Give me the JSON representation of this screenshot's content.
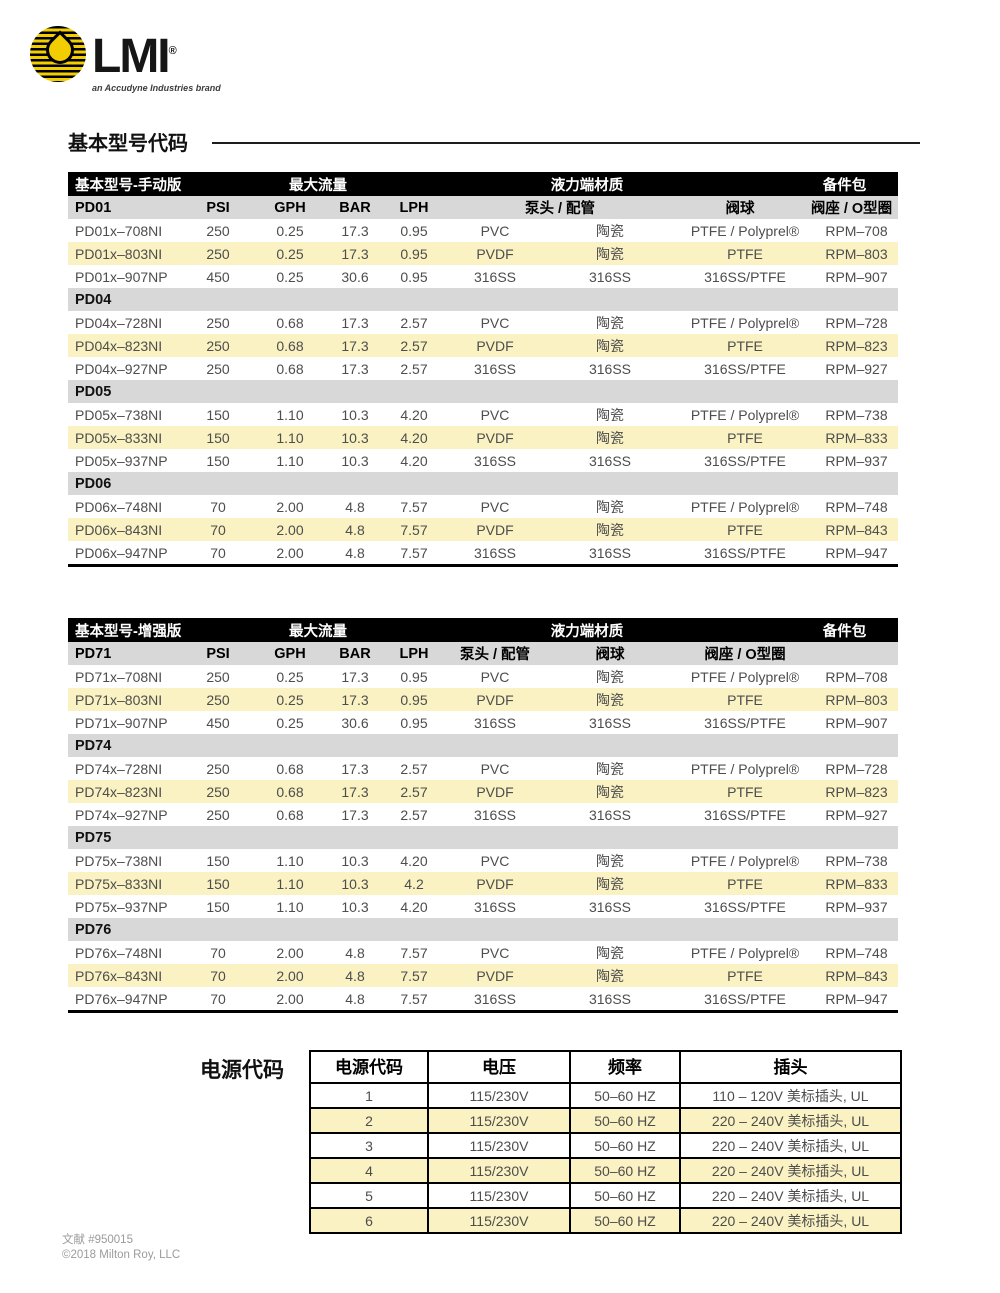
{
  "logo": {
    "brand": "LMI",
    "registered": "®",
    "tagline": "an Accudyne Industries brand"
  },
  "section_title": "基本型号代码",
  "pump_tables": [
    {
      "title": "基本型号-手动版",
      "group_headers": [
        "最大流量",
        "液力端材质",
        "备件包"
      ],
      "subheader": [
        "PD01",
        "PSI",
        "GPH",
        "BAR",
        "LPH",
        "泵头 / 配管",
        "阀球",
        "阀座 / O型圈"
      ],
      "sections": [
        {
          "name": "",
          "rows": [
            [
              "PD01x–708NI",
              "250",
              "0.25",
              "17.3",
              "0.95",
              "PVC",
              "陶瓷",
              "PTFE / Polyprel®",
              "RPM–708"
            ],
            [
              "PD01x–803NI",
              "250",
              "0.25",
              "17.3",
              "0.95",
              "PVDF",
              "陶瓷",
              "PTFE",
              "RPM–803"
            ],
            [
              "PD01x–907NP",
              "450",
              "0.25",
              "30.6",
              "0.95",
              "316SS",
              "316SS",
              "316SS/PTFE",
              "RPM–907"
            ]
          ]
        },
        {
          "name": "PD04",
          "rows": [
            [
              "PD04x–728NI",
              "250",
              "0.68",
              "17.3",
              "2.57",
              "PVC",
              "陶瓷",
              "PTFE / Polyprel®",
              "RPM–728"
            ],
            [
              "PD04x–823NI",
              "250",
              "0.68",
              "17.3",
              "2.57",
              "PVDF",
              "陶瓷",
              "PTFE",
              "RPM–823"
            ],
            [
              "PD04x–927NP",
              "250",
              "0.68",
              "17.3",
              "2.57",
              "316SS",
              "316SS",
              "316SS/PTFE",
              "RPM–927"
            ]
          ]
        },
        {
          "name": "PD05",
          "rows": [
            [
              "PD05x–738NI",
              "150",
              "1.10",
              "10.3",
              "4.20",
              "PVC",
              "陶瓷",
              "PTFE / Polyprel®",
              "RPM–738"
            ],
            [
              "PD05x–833NI",
              "150",
              "1.10",
              "10.3",
              "4.20",
              "PVDF",
              "陶瓷",
              "PTFE",
              "RPM–833"
            ],
            [
              "PD05x–937NP",
              "150",
              "1.10",
              "10.3",
              "4.20",
              "316SS",
              "316SS",
              "316SS/PTFE",
              "RPM–937"
            ]
          ]
        },
        {
          "name": "PD06",
          "rows": [
            [
              "PD06x–748NI",
              "70",
              "2.00",
              "4.8",
              "7.57",
              "PVC",
              "陶瓷",
              "PTFE / Polyprel®",
              "RPM–748"
            ],
            [
              "PD06x–843NI",
              "70",
              "2.00",
              "4.8",
              "7.57",
              "PVDF",
              "陶瓷",
              "PTFE",
              "RPM–843"
            ],
            [
              "PD06x–947NP",
              "70",
              "2.00",
              "4.8",
              "7.57",
              "316SS",
              "316SS",
              "316SS/PTFE",
              "RPM–947"
            ]
          ]
        }
      ]
    },
    {
      "title": "基本型号-增强版",
      "group_headers": [
        "最大流量",
        "液力端材质",
        "备件包"
      ],
      "subheader": [
        "PD71",
        "PSI",
        "GPH",
        "BAR",
        "LPH",
        "泵头 / 配管",
        "阀球",
        "阀座 / O型圈"
      ],
      "sections": [
        {
          "name": "",
          "rows": [
            [
              "PD71x–708NI",
              "250",
              "0.25",
              "17.3",
              "0.95",
              "PVC",
              "陶瓷",
              "PTFE / Polyprel®",
              "RPM–708"
            ],
            [
              "PD71x–803NI",
              "250",
              "0.25",
              "17.3",
              "0.95",
              "PVDF",
              "陶瓷",
              "PTFE",
              "RPM–803"
            ],
            [
              "PD71x–907NP",
              "450",
              "0.25",
              "30.6",
              "0.95",
              "316SS",
              "316SS",
              "316SS/PTFE",
              "RPM–907"
            ]
          ]
        },
        {
          "name": "PD74",
          "rows": [
            [
              "PD74x–728NI",
              "250",
              "0.68",
              "17.3",
              "2.57",
              "PVC",
              "陶瓷",
              "PTFE / Polyprel®",
              "RPM–728"
            ],
            [
              "PD74x–823NI",
              "250",
              "0.68",
              "17.3",
              "2.57",
              "PVDF",
              "陶瓷",
              "PTFE",
              "RPM–823"
            ],
            [
              "PD74x–927NP",
              "250",
              "0.68",
              "17.3",
              "2.57",
              "316SS",
              "316SS",
              "316SS/PTFE",
              "RPM–927"
            ]
          ]
        },
        {
          "name": "PD75",
          "rows": [
            [
              "PD75x–738NI",
              "150",
              "1.10",
              "10.3",
              "4.20",
              "PVC",
              "陶瓷",
              "PTFE / Polyprel®",
              "RPM–738"
            ],
            [
              "PD75x–833NI",
              "150",
              "1.10",
              "10.3",
              "4.2",
              "PVDF",
              "陶瓷",
              "PTFE",
              "RPM–833"
            ],
            [
              "PD75x–937NP",
              "150",
              "1.10",
              "10.3",
              "4.20",
              "316SS",
              "316SS",
              "316SS/PTFE",
              "RPM–937"
            ]
          ]
        },
        {
          "name": "PD76",
          "rows": [
            [
              "PD76x–748NI",
              "70",
              "2.00",
              "4.8",
              "7.57",
              "PVC",
              "陶瓷",
              "PTFE / Polyprel®",
              "RPM–748"
            ],
            [
              "PD76x–843NI",
              "70",
              "2.00",
              "4.8",
              "7.57",
              "PVDF",
              "陶瓷",
              "PTFE",
              "RPM–843"
            ],
            [
              "PD76x–947NP",
              "70",
              "2.00",
              "4.8",
              "7.57",
              "316SS",
              "316SS",
              "316SS/PTFE",
              "RPM–947"
            ]
          ]
        }
      ]
    }
  ],
  "power": {
    "side_title": "电源代码",
    "headers": [
      "电源代码",
      "电压",
      "频率",
      "插头"
    ],
    "rows": [
      [
        "1",
        "115/230V",
        "50–60 HZ",
        "110 – 120V 美标插头, UL"
      ],
      [
        "2",
        "115/230V",
        "50–60 HZ",
        "220 – 240V 美标插头, UL"
      ],
      [
        "3",
        "115/230V",
        "50–60 HZ",
        "220 – 240V 美标插头, UL"
      ],
      [
        "4",
        "115/230V",
        "50–60 HZ",
        "220 – 240V 美标插头, UL"
      ],
      [
        "5",
        "115/230V",
        "50–60 HZ",
        "220 – 240V 美标插头, UL"
      ],
      [
        "6",
        "115/230V",
        "50–60 HZ",
        "220 – 240V 美标插头, UL"
      ]
    ]
  },
  "footer": {
    "doc_number": "文献 #950015",
    "copyright": "©2018 Milton Roy, LLC"
  },
  "colors": {
    "row_highlight": "#FAF2C2",
    "header_gray": "#D8D8D8",
    "logo_yellow": "#F2CD00",
    "header_black": "#000000"
  }
}
